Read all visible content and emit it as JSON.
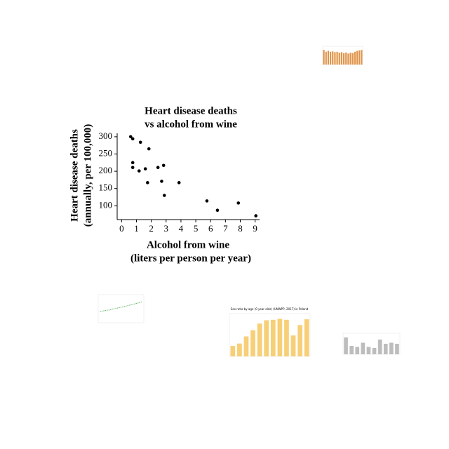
{
  "chart_data": [
    {
      "type": "scatter",
      "title": [
        "Heart disease deaths",
        "vs alcohol from wine"
      ],
      "xlabel": [
        "Alcohol from wine",
        "(liters per person per year)"
      ],
      "ylabel": [
        "Heart disease deaths",
        "(annually, per 100,000)"
      ],
      "x": [
        0.61,
        0.75,
        1.27,
        1.84,
        0.75,
        0.75,
        1.18,
        1.6,
        1.75,
        2.45,
        2.83,
        2.7,
        2.88,
        3.87,
        5.75,
        6.46,
        7.87,
        9.05
      ],
      "values": [
        300,
        294,
        284,
        265,
        225,
        211,
        201,
        207,
        167,
        211,
        217,
        171,
        130,
        167,
        114,
        87,
        108,
        71
      ],
      "color": "#000000",
      "xlim": [
        -0.3,
        9.3
      ],
      "xticks": [
        0,
        1,
        2,
        3,
        4,
        5,
        6,
        7,
        8,
        9
      ],
      "ylim": [
        60,
        310
      ],
      "yticks": [
        100,
        150,
        200,
        250,
        300
      ]
    },
    {
      "type": "bar",
      "color": "#e0954a",
      "values": [
        8,
        7,
        7.5,
        7,
        7.2,
        6.8,
        7,
        6.5,
        6.8,
        6.2,
        6.6,
        6,
        6.5,
        6.3,
        7,
        7.5,
        7.8,
        8
      ],
      "ylim": [
        0,
        10
      ]
    },
    {
      "type": "line",
      "color": "#6bb56b",
      "values": [
        4,
        4.2,
        4.4,
        4.6,
        4.9,
        5.1,
        5.4,
        5.6,
        5.9,
        6.2,
        6.5,
        6.8,
        7.1,
        7.5
      ],
      "ylim": [
        0,
        10
      ]
    },
    {
      "type": "bar",
      "color": "#f7cf76",
      "title": "Sex ratio by age (0 year olds) (UNWPP, 2017) in Poland",
      "values": [
        2.2,
        2.7,
        4.2,
        5.5,
        6.9,
        7.6,
        7.7,
        7.9,
        7.7,
        4.4,
        6.6,
        7.8
      ],
      "ylim": [
        0,
        9
      ]
    },
    {
      "type": "bar",
      "color": "#bdbdbd",
      "values": [
        8,
        4,
        3.5,
        5.5,
        3.5,
        3,
        7,
        5,
        5.5,
        5
      ],
      "ylim": [
        0,
        10
      ]
    }
  ]
}
